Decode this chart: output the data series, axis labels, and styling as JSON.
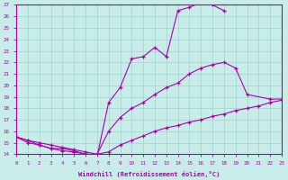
{
  "xlabel": "Windchill (Refroidissement éolien,°C)",
  "xlim": [
    0,
    23
  ],
  "ylim": [
    14,
    27
  ],
  "yticks": [
    14,
    15,
    16,
    17,
    18,
    19,
    20,
    21,
    22,
    23,
    24,
    25,
    26,
    27
  ],
  "xticks": [
    0,
    1,
    2,
    3,
    4,
    5,
    6,
    7,
    8,
    9,
    10,
    11,
    12,
    13,
    14,
    15,
    16,
    17,
    18,
    19,
    20,
    21,
    22,
    23
  ],
  "bg_color": "#c8ece8",
  "line_color": "#aa00aa",
  "grid_color": "#a0d4d0",
  "line1_x": [
    0,
    1,
    2,
    3,
    4,
    5,
    6,
    7,
    8,
    9,
    10,
    11,
    12,
    13,
    14,
    15,
    16,
    17,
    18
  ],
  "line1_y": [
    15.5,
    15.0,
    14.8,
    14.5,
    14.5,
    14.3,
    14.0,
    13.8,
    18.5,
    19.8,
    22.3,
    22.5,
    23.3,
    22.5,
    26.5,
    26.8,
    27.2,
    27.0,
    26.5
  ],
  "line2_x": [
    0,
    1,
    2,
    3,
    4,
    5,
    6,
    7,
    8,
    9,
    10,
    11,
    12,
    13,
    14,
    15,
    16,
    17,
    18,
    19,
    20,
    22,
    23
  ],
  "line2_y": [
    15.5,
    15.2,
    14.8,
    14.5,
    14.3,
    14.2,
    14.0,
    14.0,
    16.0,
    17.2,
    18.0,
    18.5,
    19.2,
    19.8,
    20.2,
    21.0,
    21.5,
    21.8,
    22.0,
    21.5,
    19.2,
    18.8,
    18.8
  ],
  "line3_x": [
    0,
    1,
    2,
    3,
    4,
    5,
    6,
    7,
    8,
    9,
    10,
    11,
    12,
    13,
    14,
    15,
    16,
    17,
    18,
    19,
    20,
    21,
    22,
    23
  ],
  "line3_y": [
    15.5,
    15.2,
    15.0,
    14.8,
    14.6,
    14.4,
    14.2,
    14.0,
    14.2,
    14.8,
    15.2,
    15.6,
    16.0,
    16.3,
    16.5,
    16.8,
    17.0,
    17.3,
    17.5,
    17.8,
    18.0,
    18.2,
    18.5,
    18.7
  ]
}
